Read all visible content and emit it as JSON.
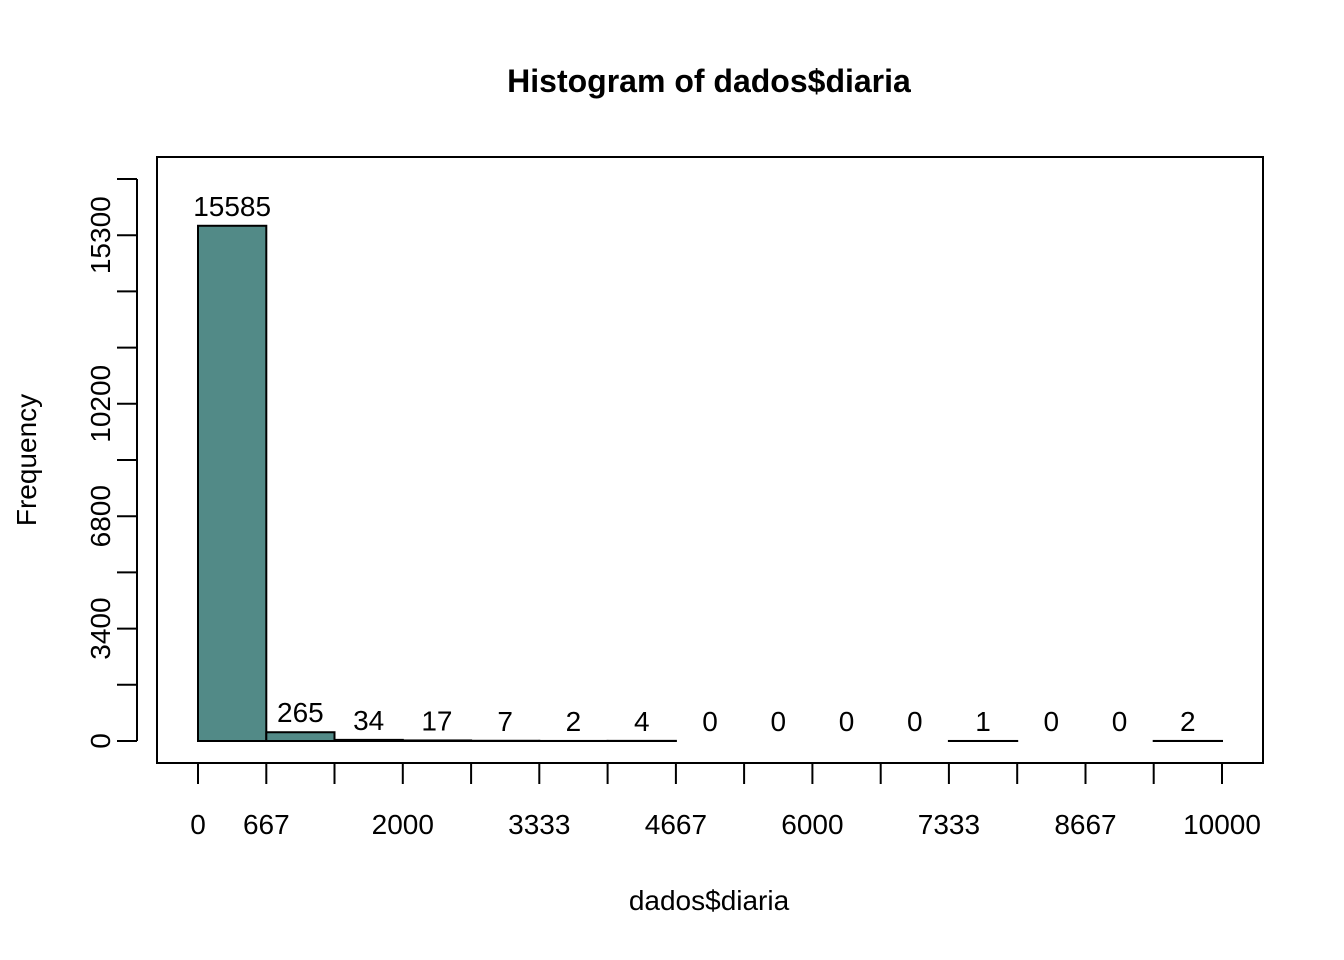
{
  "chart_data": {
    "type": "bar",
    "title": "Histogram of dados$diaria",
    "xlabel": "dados$diaria",
    "ylabel": "Frequency",
    "bins": [
      {
        "start": 0,
        "end": 667,
        "count": 15585
      },
      {
        "start": 667,
        "end": 1333,
        "count": 265
      },
      {
        "start": 1333,
        "end": 2000,
        "count": 34
      },
      {
        "start": 2000,
        "end": 2667,
        "count": 17
      },
      {
        "start": 2667,
        "end": 3333,
        "count": 7
      },
      {
        "start": 3333,
        "end": 4000,
        "count": 2
      },
      {
        "start": 4000,
        "end": 4667,
        "count": 4
      },
      {
        "start": 4667,
        "end": 5333,
        "count": 0
      },
      {
        "start": 5333,
        "end": 6000,
        "count": 0
      },
      {
        "start": 6000,
        "end": 6667,
        "count": 0
      },
      {
        "start": 6667,
        "end": 7333,
        "count": 0
      },
      {
        "start": 7333,
        "end": 8000,
        "count": 1
      },
      {
        "start": 8000,
        "end": 8667,
        "count": 0
      },
      {
        "start": 8667,
        "end": 9333,
        "count": 0
      },
      {
        "start": 9333,
        "end": 10000,
        "count": 2
      }
    ],
    "x_ticks": [
      0,
      667,
      1333,
      2000,
      2667,
      3333,
      4000,
      4667,
      5333,
      6000,
      6667,
      7333,
      8000,
      8667,
      9333,
      10000
    ],
    "x_tick_labels": [
      "0",
      "667",
      "",
      "2000",
      "",
      "3333",
      "",
      "4667",
      "",
      "6000",
      "",
      "7333",
      "",
      "8667",
      "",
      "10000"
    ],
    "y_ticks": [
      0,
      1700,
      3400,
      5100,
      6800,
      8500,
      10200,
      11900,
      13600,
      15300,
      17000
    ],
    "y_tick_labels": [
      "0",
      "",
      "3400",
      "",
      "6800",
      "",
      "10200",
      "",
      "",
      "15300",
      ""
    ],
    "xlim": [
      0,
      10000
    ],
    "ylim": [
      0,
      17000
    ],
    "bar_color": "#528a87",
    "grid": false,
    "box": true
  }
}
